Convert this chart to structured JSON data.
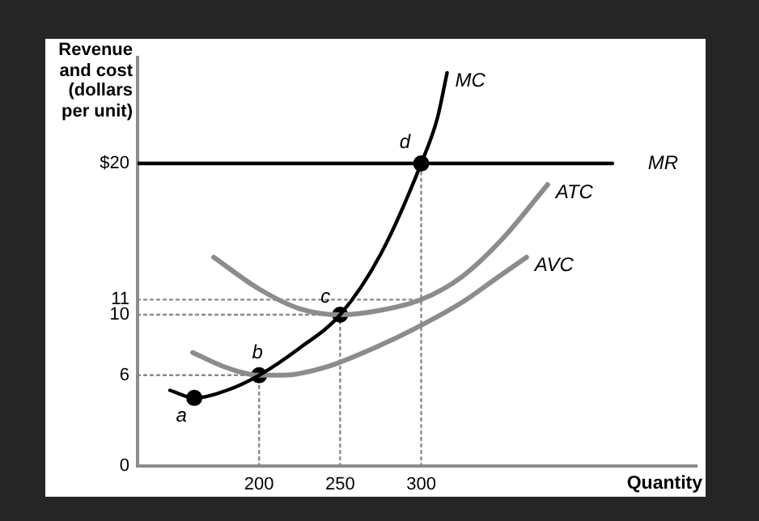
{
  "chart_data": {
    "type": "line",
    "xlabel": "Quantity",
    "ylabel": "Revenue and cost (dollars per unit)",
    "xlim": [
      125,
      470
    ],
    "ylim": [
      0,
      27
    ],
    "xticks": [
      200,
      250,
      300
    ],
    "yticks": [
      0,
      6,
      10,
      11,
      {
        "value": 20,
        "label": "$20"
      }
    ],
    "grid": false,
    "legend": false,
    "series": [
      {
        "name": "MC",
        "color": "#000000",
        "x": [
          145,
          160,
          180,
          200,
          225,
          250,
          275,
          300,
          310,
          316
        ],
        "values": [
          5,
          4.5,
          5,
          6,
          7.8,
          10,
          14,
          20,
          23,
          26
        ],
        "marker": "none"
      },
      {
        "name": "ATC",
        "color": "#8c8c8c",
        "x": [
          172,
          200,
          225,
          250,
          275,
          300,
          325,
          350,
          378
        ],
        "values": [
          13.8,
          11.7,
          10.4,
          10,
          10.3,
          11,
          12.5,
          15,
          18.6
        ],
        "marker": "none"
      },
      {
        "name": "AVC",
        "color": "#8c8c8c",
        "x": [
          159,
          180,
          200,
          215,
          240,
          275,
          300,
          325,
          345,
          365
        ],
        "values": [
          7.5,
          6.5,
          6,
          6,
          6.5,
          8,
          9.3,
          10.8,
          12.3,
          13.8
        ],
        "marker": "none"
      },
      {
        "name": "MR",
        "color": "#000000",
        "x": [
          125,
          418
        ],
        "values": [
          20,
          20
        ],
        "marker": "none"
      },
      {
        "type": "scatter",
        "color": "#000000",
        "x": [
          160,
          200,
          250,
          300
        ],
        "values": [
          4.5,
          6,
          10,
          20
        ],
        "marker": "circle"
      },
      {
        "color": "#888888",
        "x": [
          125,
          300
        ],
        "values": [
          11,
          11
        ],
        "marker": "none",
        "line_style": "dotted"
      },
      {
        "color": "#888888",
        "x": [
          125,
          250
        ],
        "values": [
          10,
          10
        ],
        "marker": "none",
        "line_style": "dotted"
      },
      {
        "color": "#888888",
        "x": [
          125,
          200
        ],
        "values": [
          6,
          6
        ],
        "marker": "none",
        "line_style": "dotted"
      },
      {
        "color": "#888888",
        "x": [
          200,
          200
        ],
        "values": [
          0,
          6
        ],
        "marker": "none",
        "line_style": "dotted"
      },
      {
        "color": "#888888",
        "x": [
          250,
          250
        ],
        "values": [
          0,
          10
        ],
        "marker": "none",
        "line_style": "dotted"
      },
      {
        "color": "#888888",
        "x": [
          300,
          300
        ],
        "values": [
          0,
          20
        ],
        "marker": "none",
        "line_style": "dotted"
      }
    ],
    "annotations": [
      {
        "text": "a",
        "x": 160,
        "y": 4.5
      },
      {
        "text": "b",
        "x": 200,
        "y": 6
      },
      {
        "text": "c",
        "x": 250,
        "y": 10
      },
      {
        "text": "d",
        "x": 300,
        "y": 20
      }
    ]
  }
}
